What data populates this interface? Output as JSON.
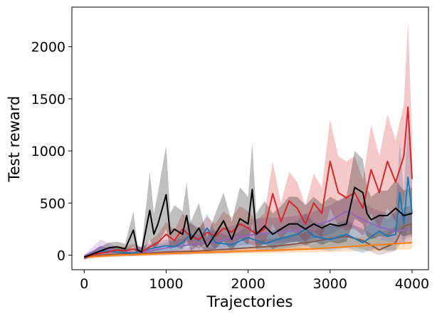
{
  "chart_data": {
    "type": "line",
    "title": "",
    "xlabel": "Trajectories",
    "ylabel": "Test reward",
    "xlim": [
      -150,
      4200
    ],
    "ylim": [
      -140,
      2380
    ],
    "xticks": [
      0,
      1000,
      2000,
      3000,
      4000
    ],
    "xtick_labels": [
      "0",
      "1000",
      "2000",
      "3000",
      "4000"
    ],
    "yticks": [
      0,
      500,
      1000,
      1500,
      2000
    ],
    "ytick_labels": [
      "0",
      "500",
      "1000",
      "1500",
      "2000"
    ],
    "grid": false,
    "legend": "none",
    "band_opacity": 0.25,
    "series": [
      {
        "color": "#8c564b",
        "x": [
          0,
          200,
          400,
          600,
          800,
          1000,
          1200,
          1400,
          1600,
          1800,
          2000,
          2200,
          2400,
          2600,
          2800,
          3000,
          3200,
          3400,
          3600,
          3800,
          3900,
          4000
        ],
        "y": [
          -20,
          0,
          10,
          15,
          20,
          30,
          35,
          40,
          50,
          60,
          70,
          80,
          90,
          110,
          130,
          160,
          180,
          140,
          50,
          120,
          280,
          300
        ],
        "lower": [
          -40,
          -20,
          -15,
          -10,
          -5,
          0,
          5,
          10,
          15,
          20,
          25,
          30,
          35,
          50,
          60,
          80,
          90,
          60,
          0,
          40,
          150,
          180
        ],
        "upper": [
          0,
          20,
          30,
          40,
          50,
          60,
          70,
          80,
          90,
          110,
          130,
          150,
          170,
          200,
          230,
          280,
          300,
          260,
          150,
          280,
          460,
          480
        ]
      },
      {
        "color": "#ff7f0e",
        "x": [
          0,
          200,
          400,
          600,
          800,
          1000,
          1200,
          1400,
          1600,
          1800,
          2000,
          2200,
          2400,
          2600,
          2800,
          3000,
          3200,
          3400,
          3600,
          3800,
          4000
        ],
        "y": [
          -20,
          -10,
          0,
          5,
          10,
          15,
          20,
          25,
          30,
          35,
          40,
          45,
          50,
          55,
          60,
          70,
          80,
          90,
          100,
          110,
          120
        ],
        "lower": [
          -30,
          -20,
          -15,
          -10,
          -5,
          0,
          5,
          10,
          10,
          15,
          15,
          20,
          20,
          25,
          25,
          30,
          35,
          40,
          45,
          50,
          55
        ],
        "upper": [
          -10,
          5,
          15,
          20,
          30,
          40,
          45,
          50,
          60,
          70,
          75,
          85,
          95,
          100,
          110,
          130,
          150,
          180,
          220,
          260,
          280
        ]
      },
      {
        "color": "#9467bd",
        "x": [
          0,
          200,
          400,
          600,
          800,
          1000,
          1200,
          1400,
          1600,
          1800,
          2000,
          2200,
          2400,
          2600,
          2800,
          3000,
          3200,
          3400,
          3600,
          3800,
          4000
        ],
        "y": [
          -20,
          80,
          30,
          20,
          40,
          70,
          90,
          110,
          130,
          160,
          190,
          210,
          220,
          240,
          280,
          330,
          420,
          340,
          270,
          230,
          250
        ],
        "lower": [
          -40,
          20,
          0,
          -5,
          10,
          30,
          40,
          50,
          60,
          80,
          100,
          110,
          120,
          130,
          160,
          200,
          280,
          200,
          150,
          120,
          130
        ],
        "upper": [
          0,
          150,
          80,
          60,
          90,
          120,
          160,
          200,
          240,
          280,
          340,
          360,
          360,
          380,
          420,
          480,
          570,
          500,
          420,
          400,
          420
        ]
      },
      {
        "color": "#1f77b4",
        "x": [
          0,
          200,
          400,
          600,
          800,
          1000,
          1100,
          1200,
          1300,
          1400,
          1500,
          1600,
          1800,
          2000,
          2200,
          2400,
          2600,
          2700,
          2800,
          3000,
          3200,
          3400,
          3600,
          3700,
          3800,
          3850,
          3900,
          3950,
          4000
        ],
        "y": [
          -20,
          40,
          30,
          20,
          60,
          90,
          80,
          120,
          200,
          140,
          260,
          120,
          100,
          170,
          110,
          160,
          200,
          250,
          180,
          150,
          200,
          120,
          230,
          180,
          200,
          600,
          300,
          750,
          400
        ],
        "lower": [
          -40,
          10,
          0,
          -5,
          20,
          40,
          30,
          60,
          100,
          60,
          140,
          50,
          40,
          80,
          40,
          60,
          80,
          100,
          60,
          40,
          70,
          20,
          80,
          40,
          50,
          250,
          80,
          300,
          150
        ],
        "upper": [
          0,
          80,
          70,
          60,
          110,
          150,
          140,
          200,
          320,
          240,
          400,
          220,
          180,
          280,
          200,
          270,
          330,
          400,
          320,
          280,
          340,
          240,
          400,
          350,
          420,
          1100,
          600,
          1300,
          800
        ]
      },
      {
        "color": "#d62728",
        "x": [
          0,
          100,
          200,
          300,
          400,
          500,
          600,
          700,
          800,
          900,
          1000,
          1100,
          1200,
          1300,
          1400,
          1500,
          1600,
          1700,
          1800,
          1900,
          2000,
          2100,
          2200,
          2300,
          2400,
          2500,
          2600,
          2700,
          2800,
          2900,
          3000,
          3100,
          3200,
          3300,
          3400,
          3500,
          3600,
          3700,
          3800,
          3900,
          3950,
          4000
        ],
        "y": [
          -20,
          0,
          20,
          30,
          50,
          40,
          60,
          30,
          80,
          120,
          200,
          140,
          250,
          180,
          150,
          220,
          180,
          260,
          220,
          300,
          260,
          200,
          250,
          590,
          320,
          520,
          450,
          300,
          500,
          400,
          900,
          600,
          550,
          600,
          450,
          820,
          600,
          900,
          700,
          950,
          1420,
          730
        ],
        "lower": [
          -40,
          -20,
          -5,
          5,
          20,
          15,
          25,
          5,
          40,
          60,
          100,
          70,
          130,
          90,
          70,
          110,
          80,
          130,
          100,
          160,
          120,
          80,
          110,
          300,
          150,
          250,
          200,
          120,
          230,
          170,
          450,
          280,
          230,
          260,
          180,
          400,
          260,
          450,
          320,
          500,
          800,
          350
        ],
        "upper": [
          0,
          30,
          50,
          70,
          90,
          80,
          110,
          70,
          140,
          200,
          320,
          240,
          400,
          300,
          260,
          370,
          300,
          420,
          360,
          470,
          420,
          340,
          400,
          900,
          500,
          800,
          700,
          480,
          780,
          650,
          1300,
          950,
          900,
          950,
          720,
          1250,
          950,
          1350,
          1100,
          1450,
          2250,
          1150
        ]
      },
      {
        "color": "#000000",
        "x": [
          0,
          100,
          200,
          300,
          400,
          500,
          600,
          650,
          700,
          800,
          850,
          900,
          1000,
          1050,
          1100,
          1200,
          1250,
          1300,
          1400,
          1500,
          1600,
          1700,
          1800,
          1900,
          2000,
          2050,
          2100,
          2200,
          2300,
          2400,
          2500,
          2600,
          2700,
          2800,
          2900,
          3000,
          3100,
          3200,
          3300,
          3400,
          3450,
          3500,
          3600,
          3700,
          3800,
          3900,
          4000
        ],
        "y": [
          -20,
          10,
          40,
          70,
          80,
          60,
          240,
          50,
          30,
          430,
          200,
          300,
          580,
          200,
          250,
          200,
          380,
          150,
          260,
          80,
          200,
          330,
          150,
          350,
          300,
          630,
          200,
          280,
          200,
          250,
          300,
          300,
          250,
          300,
          260,
          300,
          280,
          300,
          650,
          600,
          400,
          340,
          380,
          380,
          450,
          380,
          400
        ],
        "lower": [
          -40,
          -10,
          10,
          30,
          40,
          20,
          80,
          10,
          0,
          150,
          60,
          100,
          250,
          60,
          80,
          60,
          150,
          40,
          100,
          20,
          60,
          130,
          40,
          150,
          100,
          300,
          60,
          110,
          60,
          90,
          120,
          130,
          90,
          130,
          100,
          130,
          110,
          130,
          350,
          300,
          180,
          150,
          180,
          180,
          230,
          180,
          200
        ],
        "upper": [
          0,
          40,
          80,
          120,
          130,
          110,
          420,
          100,
          70,
          800,
          400,
          600,
          1050,
          400,
          480,
          420,
          700,
          320,
          500,
          170,
          400,
          600,
          320,
          650,
          560,
          1080,
          400,
          520,
          400,
          470,
          560,
          560,
          480,
          560,
          490,
          560,
          520,
          560,
          1000,
          920,
          650,
          560,
          620,
          620,
          720,
          620,
          650
        ]
      }
    ]
  }
}
